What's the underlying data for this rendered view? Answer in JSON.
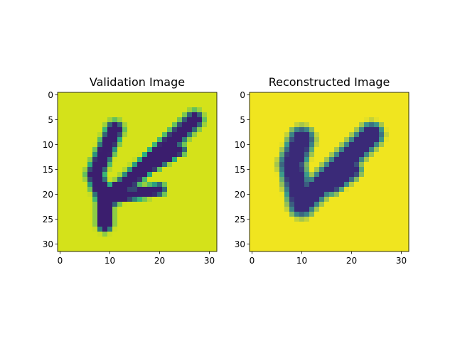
{
  "chart_data": [
    {
      "type": "heatmap",
      "title": "Validation Image",
      "xlabel": "",
      "ylabel": "",
      "xlim": [
        -0.5,
        31.5
      ],
      "ylim": [
        31.5,
        -0.5
      ],
      "xticks": [
        0,
        10,
        20,
        30
      ],
      "yticks": [
        0,
        5,
        10,
        15,
        20,
        25,
        30
      ],
      "colormap": "viridis",
      "background_color": "#d4e21a",
      "stroke_color": "#3b1e6e",
      "edge_color": "#2ab07f",
      "strokes": [
        {
          "from": [
            11,
            7
          ],
          "to": [
            7,
            16
          ],
          "width": 1.3
        },
        {
          "from": [
            7,
            16
          ],
          "to": [
            9,
            21
          ],
          "width": 1.3
        },
        {
          "from": [
            10,
            21
          ],
          "to": [
            27,
            5
          ],
          "width": 1.3
        },
        {
          "from": [
            9,
            21
          ],
          "to": [
            9,
            26
          ],
          "width": 1.2
        },
        {
          "from": [
            9,
            20
          ],
          "to": [
            24,
            11
          ],
          "width": 0.9
        },
        {
          "from": [
            9,
            21
          ],
          "to": [
            20,
            19
          ],
          "width": 0.9
        }
      ]
    },
    {
      "type": "heatmap",
      "title": "Reconstructed Image",
      "xlabel": "",
      "ylabel": "",
      "xlim": [
        -0.5,
        31.5
      ],
      "ylim": [
        31.5,
        -0.5
      ],
      "xticks": [
        0,
        10,
        20,
        30
      ],
      "yticks": [
        0,
        5,
        10,
        15,
        20,
        25,
        30
      ],
      "colormap": "viridis",
      "background_color": "#f0e51f",
      "stroke_color": "#3a2a78",
      "edge_color": "#3c9c8a",
      "strokes": [
        {
          "from": [
            10,
            9
          ],
          "to": [
            8,
            14
          ],
          "width": 1.8
        },
        {
          "from": [
            8,
            14
          ],
          "to": [
            10,
            22
          ],
          "width": 1.8
        },
        {
          "from": [
            10,
            22
          ],
          "to": [
            24,
            8
          ],
          "width": 1.7
        },
        {
          "from": [
            16,
            18
          ],
          "to": [
            20,
            15
          ],
          "width": 1.4
        }
      ]
    }
  ]
}
